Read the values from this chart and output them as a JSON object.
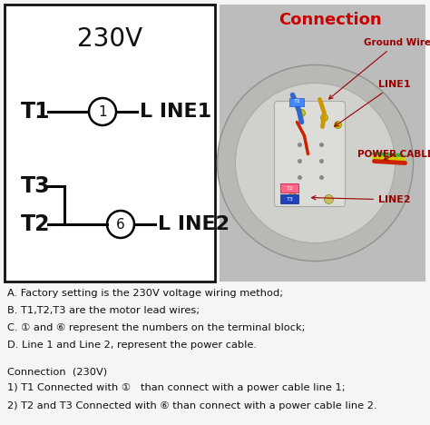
{
  "title_voltage": "230V",
  "connection_title": "Connection",
  "line1_label": "T1",
  "line1_terminal": "①",
  "line1_name": "L INE1",
  "line2_label_t3": "T3",
  "line2_label_t2": "T2",
  "line2_terminal": "⑥",
  "line2_name": "L INE2",
  "notes": [
    "A. Factory setting is the 230V voltage wiring method;",
    "B. T1,T2,T3 are the motor lead wires;",
    "C. ① and ⑥ represent the numbers on the terminal block;",
    "D. Line 1 and Line 2, represent the power cable."
  ],
  "connection_header": "Connection  (230V)",
  "connection_steps": [
    "1) T1 Connected with ①   than connect with a power cable line 1;",
    "2) T2 and T3 Connected with ⑥ than connect with a power cable line 2."
  ],
  "bg_color": "#f5f5f5",
  "diagram_box_color": "#111111",
  "text_color": "#111111",
  "connection_title_color": "#cc0000",
  "annotation_color": "#990000",
  "motor_bg": "#c8c8c8",
  "motor_outer": "#b0b0b0",
  "motor_inner_bg": "#d8d8d8",
  "motor_plate": "#d0d0cc",
  "photo_bg": "#c0c0bc"
}
